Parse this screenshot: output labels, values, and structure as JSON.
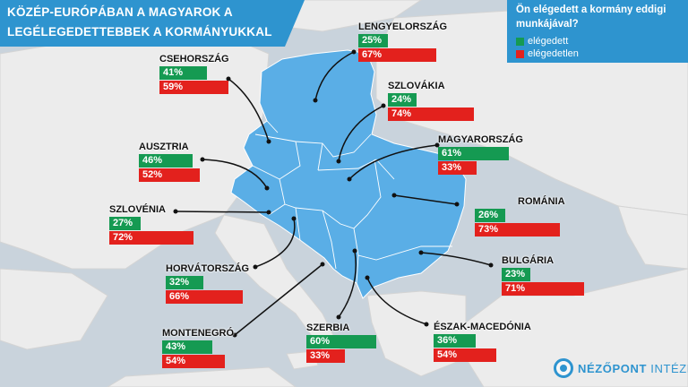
{
  "title": {
    "line1": "KÖZÉP-EURÓPÁBAN A MAGYAROK A",
    "line2": "LEGÉLEGEDETTEBBEK A KORMÁNYUKKAL"
  },
  "legend": {
    "question_line1": "Ön elégedett a kormány eddigi",
    "question_line2": "munkájával?",
    "satisfied": "elégedett",
    "dissatisfied": "elégedetlen"
  },
  "countries": [
    {
      "name": "LENGYELORSZÁG",
      "satisfied": "25%",
      "dissatisfied": "67%"
    },
    {
      "name": "CSEHORSZÁG",
      "satisfied": "41%",
      "dissatisfied": "59%"
    },
    {
      "name": "SZLOVÁKIA",
      "satisfied": "24%",
      "dissatisfied": "74%"
    },
    {
      "name": "MAGYARORSZÁG",
      "satisfied": "61%",
      "dissatisfied": "33%"
    },
    {
      "name": "AUSZTRIA",
      "satisfied": "46%",
      "dissatisfied": "52%"
    },
    {
      "name": "SZLOVÉNIA",
      "satisfied": "27%",
      "dissatisfied": "72%"
    },
    {
      "name": "ROMÁNIA",
      "satisfied": "26%",
      "dissatisfied": "73%"
    },
    {
      "name": "BULGÁRIA",
      "satisfied": "23%",
      "dissatisfied": "71%"
    },
    {
      "name": "HORVÁTORSZÁG",
      "satisfied": "32%",
      "dissatisfied": "66%"
    },
    {
      "name": "MONTENEGRÓ",
      "satisfied": "43%",
      "dissatisfied": "54%"
    },
    {
      "name": "SZERBIA",
      "satisfied": "60%",
      "dissatisfied": "33%"
    },
    {
      "name": "ÉSZAK-MACEDÓNIA",
      "satisfied": "36%",
      "dissatisfied": "54%"
    }
  ],
  "brand": {
    "part1": "NÉZŐPONT",
    "part2": "INTÉZET"
  },
  "colors": {
    "accent": "#2e94cf",
    "region": "#5aaee6",
    "satisfied": "#159a52",
    "dissatisfied": "#e3211d",
    "land": "#ececec",
    "sea": "#c9d3dc"
  }
}
